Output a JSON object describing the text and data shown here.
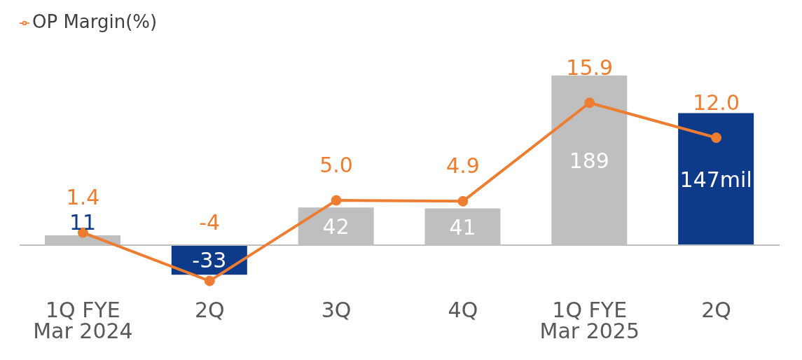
{
  "chart_data": {
    "type": "bar",
    "categories": [
      "1Q FYE\nMar 2024",
      "2Q",
      "3Q",
      "4Q",
      "1Q FYE\nMar 2025",
      "2Q"
    ],
    "series": [
      {
        "colors": [
          "#bfbfbf",
          "#0e3a8a",
          "#bfbfbf",
          "#bfbfbf",
          "#bfbfbf",
          "#0e3a8a"
        ],
        "values": [
          11,
          -33,
          42,
          41,
          189,
          147
        ],
        "value_labels": [
          "11",
          "-33",
          "42",
          "41",
          "189",
          "147mil"
        ]
      },
      {
        "type": "line",
        "name": "OP Margin(%)",
        "color": "#ed7d31",
        "axis": "y2",
        "values": [
          1.4,
          -4,
          5.0,
          4.9,
          15.9,
          12.0
        ],
        "value_labels": [
          "1.4",
          "-4",
          "5.0",
          "4.9",
          "15.9",
          "12.0"
        ]
      }
    ],
    "marker": "circle",
    "legend": "top left",
    "tick_labels": "x"
  }
}
